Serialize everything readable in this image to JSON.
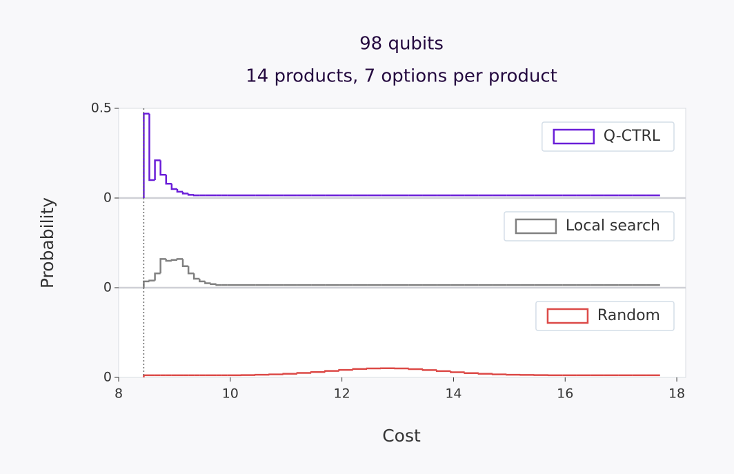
{
  "chart_data": {
    "type": "histogram",
    "title": "98 qubits",
    "subtitle": "14 products, 7 options per product",
    "xlabel": "Cost",
    "ylabel": "Probability",
    "xlim": [
      8,
      18.16
    ],
    "xticks": [
      8,
      10,
      12,
      14,
      16,
      18
    ],
    "vline": 8.45,
    "bins": [
      8.45,
      8.55,
      8.65,
      8.75,
      8.85,
      8.95,
      9.05,
      9.15,
      9.25,
      9.35,
      9.45,
      9.55,
      9.65,
      9.75,
      9.85,
      9.95,
      10.2,
      10.45,
      10.7,
      10.95,
      11.2,
      11.45,
      11.7,
      11.95,
      12.2,
      12.45,
      12.7,
      12.95,
      13.2,
      13.45,
      13.7,
      13.95,
      14.2,
      14.45,
      14.7,
      14.95,
      15.2,
      15.45,
      15.7,
      15.95,
      16.2,
      16.45,
      16.7,
      16.95,
      17.2,
      17.45,
      17.7
    ],
    "series": [
      {
        "name": "Q-CTRL",
        "color": "#6a1ed8",
        "ylim": [
          0,
          0.5
        ],
        "yticks": [
          0,
          0.5
        ],
        "values": [
          0.47,
          0.1,
          0.21,
          0.13,
          0.08,
          0.05,
          0.035,
          0.025,
          0.018,
          0.015,
          0.015,
          0.015,
          0.015,
          0.015,
          0.015,
          0.015,
          0.015,
          0.015,
          0.015,
          0.015,
          0.015,
          0.015,
          0.015,
          0.015,
          0.015,
          0.015,
          0.015,
          0.015,
          0.015,
          0.015,
          0.015,
          0.015,
          0.015,
          0.015,
          0.015,
          0.015,
          0.015,
          0.015,
          0.015,
          0.015,
          0.015,
          0.015,
          0.015,
          0.015,
          0.015,
          0.015
        ]
      },
      {
        "name": "Local search",
        "color": "#808080",
        "ylim": [
          0,
          0.5
        ],
        "yticks": [
          0
        ],
        "values": [
          0.035,
          0.04,
          0.08,
          0.16,
          0.15,
          0.155,
          0.16,
          0.12,
          0.08,
          0.05,
          0.035,
          0.025,
          0.02,
          0.015,
          0.015,
          0.015,
          0.015,
          0.015,
          0.015,
          0.015,
          0.015,
          0.015,
          0.015,
          0.015,
          0.015,
          0.015,
          0.015,
          0.015,
          0.015,
          0.015,
          0.015,
          0.015,
          0.015,
          0.015,
          0.015,
          0.015,
          0.015,
          0.015,
          0.015,
          0.015,
          0.015,
          0.015,
          0.015,
          0.015,
          0.015,
          0.015
        ]
      },
      {
        "name": "Random",
        "color": "#dc4a47",
        "ylim": [
          0,
          0.5
        ],
        "yticks": [
          0
        ],
        "values": [
          0.012,
          0.012,
          0.012,
          0.012,
          0.012,
          0.012,
          0.012,
          0.012,
          0.012,
          0.012,
          0.012,
          0.012,
          0.012,
          0.012,
          0.012,
          0.012,
          0.013,
          0.015,
          0.017,
          0.02,
          0.025,
          0.03,
          0.036,
          0.042,
          0.047,
          0.05,
          0.051,
          0.05,
          0.046,
          0.041,
          0.035,
          0.029,
          0.024,
          0.02,
          0.017,
          0.015,
          0.014,
          0.013,
          0.012,
          0.012,
          0.012,
          0.012,
          0.012,
          0.012,
          0.012,
          0.012
        ]
      }
    ]
  }
}
